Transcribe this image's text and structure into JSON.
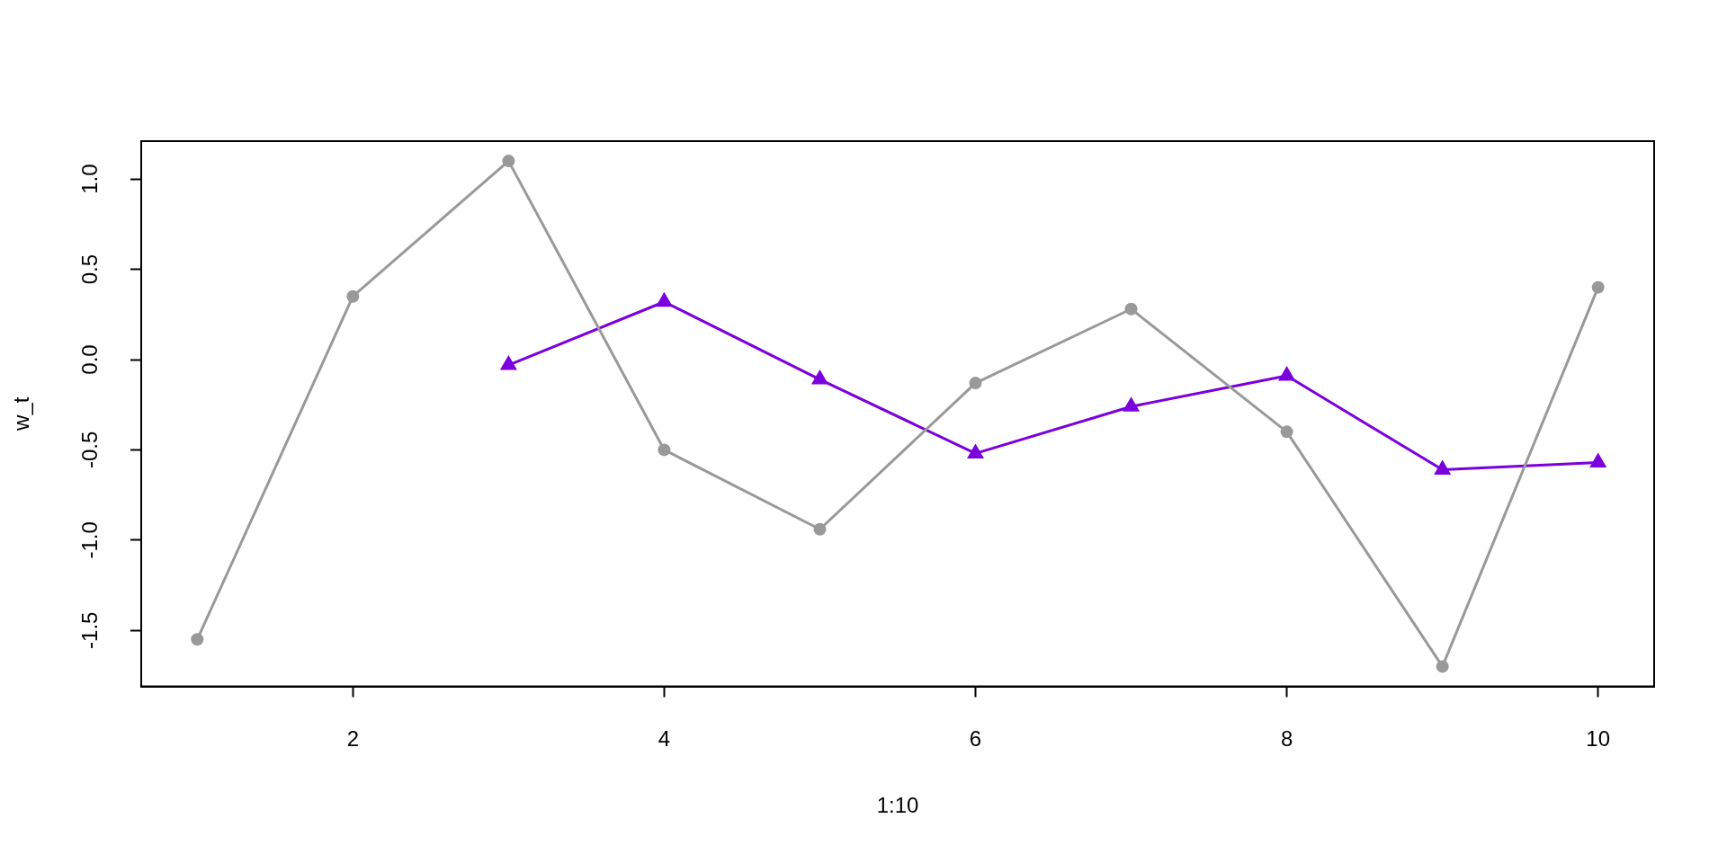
{
  "chart_data": {
    "type": "line",
    "xlabel": "1:10",
    "ylabel": "w_t",
    "x": [
      1,
      2,
      3,
      4,
      5,
      6,
      7,
      8,
      9,
      10
    ],
    "series": [
      {
        "color": "#999999",
        "marker": "circle",
        "values": [
          -1.55,
          0.35,
          1.1,
          -0.5,
          -0.94,
          -0.13,
          0.28,
          -0.4,
          -1.7,
          0.4
        ]
      },
      {
        "color": "#7a00dd",
        "marker": "triangle",
        "x": [
          3,
          4,
          5,
          6,
          7,
          8,
          9,
          10
        ],
        "values": [
          -0.03,
          0.32,
          -0.11,
          -0.52,
          -0.26,
          -0.09,
          -0.61,
          -0.57
        ]
      }
    ],
    "xlim": [
      0.64,
      10.36
    ],
    "xticks": [
      2,
      4,
      6,
      8,
      10
    ],
    "ylim": [
      -1.81,
      1.21
    ],
    "yticks": [
      -1.5,
      {
        "value": -1,
        "label": "-1.0"
      },
      -0.5,
      {
        "value": 0,
        "label": "0.0"
      },
      0.5,
      {
        "value": 1,
        "label": "1.0"
      }
    ],
    "grid": false,
    "legend": false
  }
}
